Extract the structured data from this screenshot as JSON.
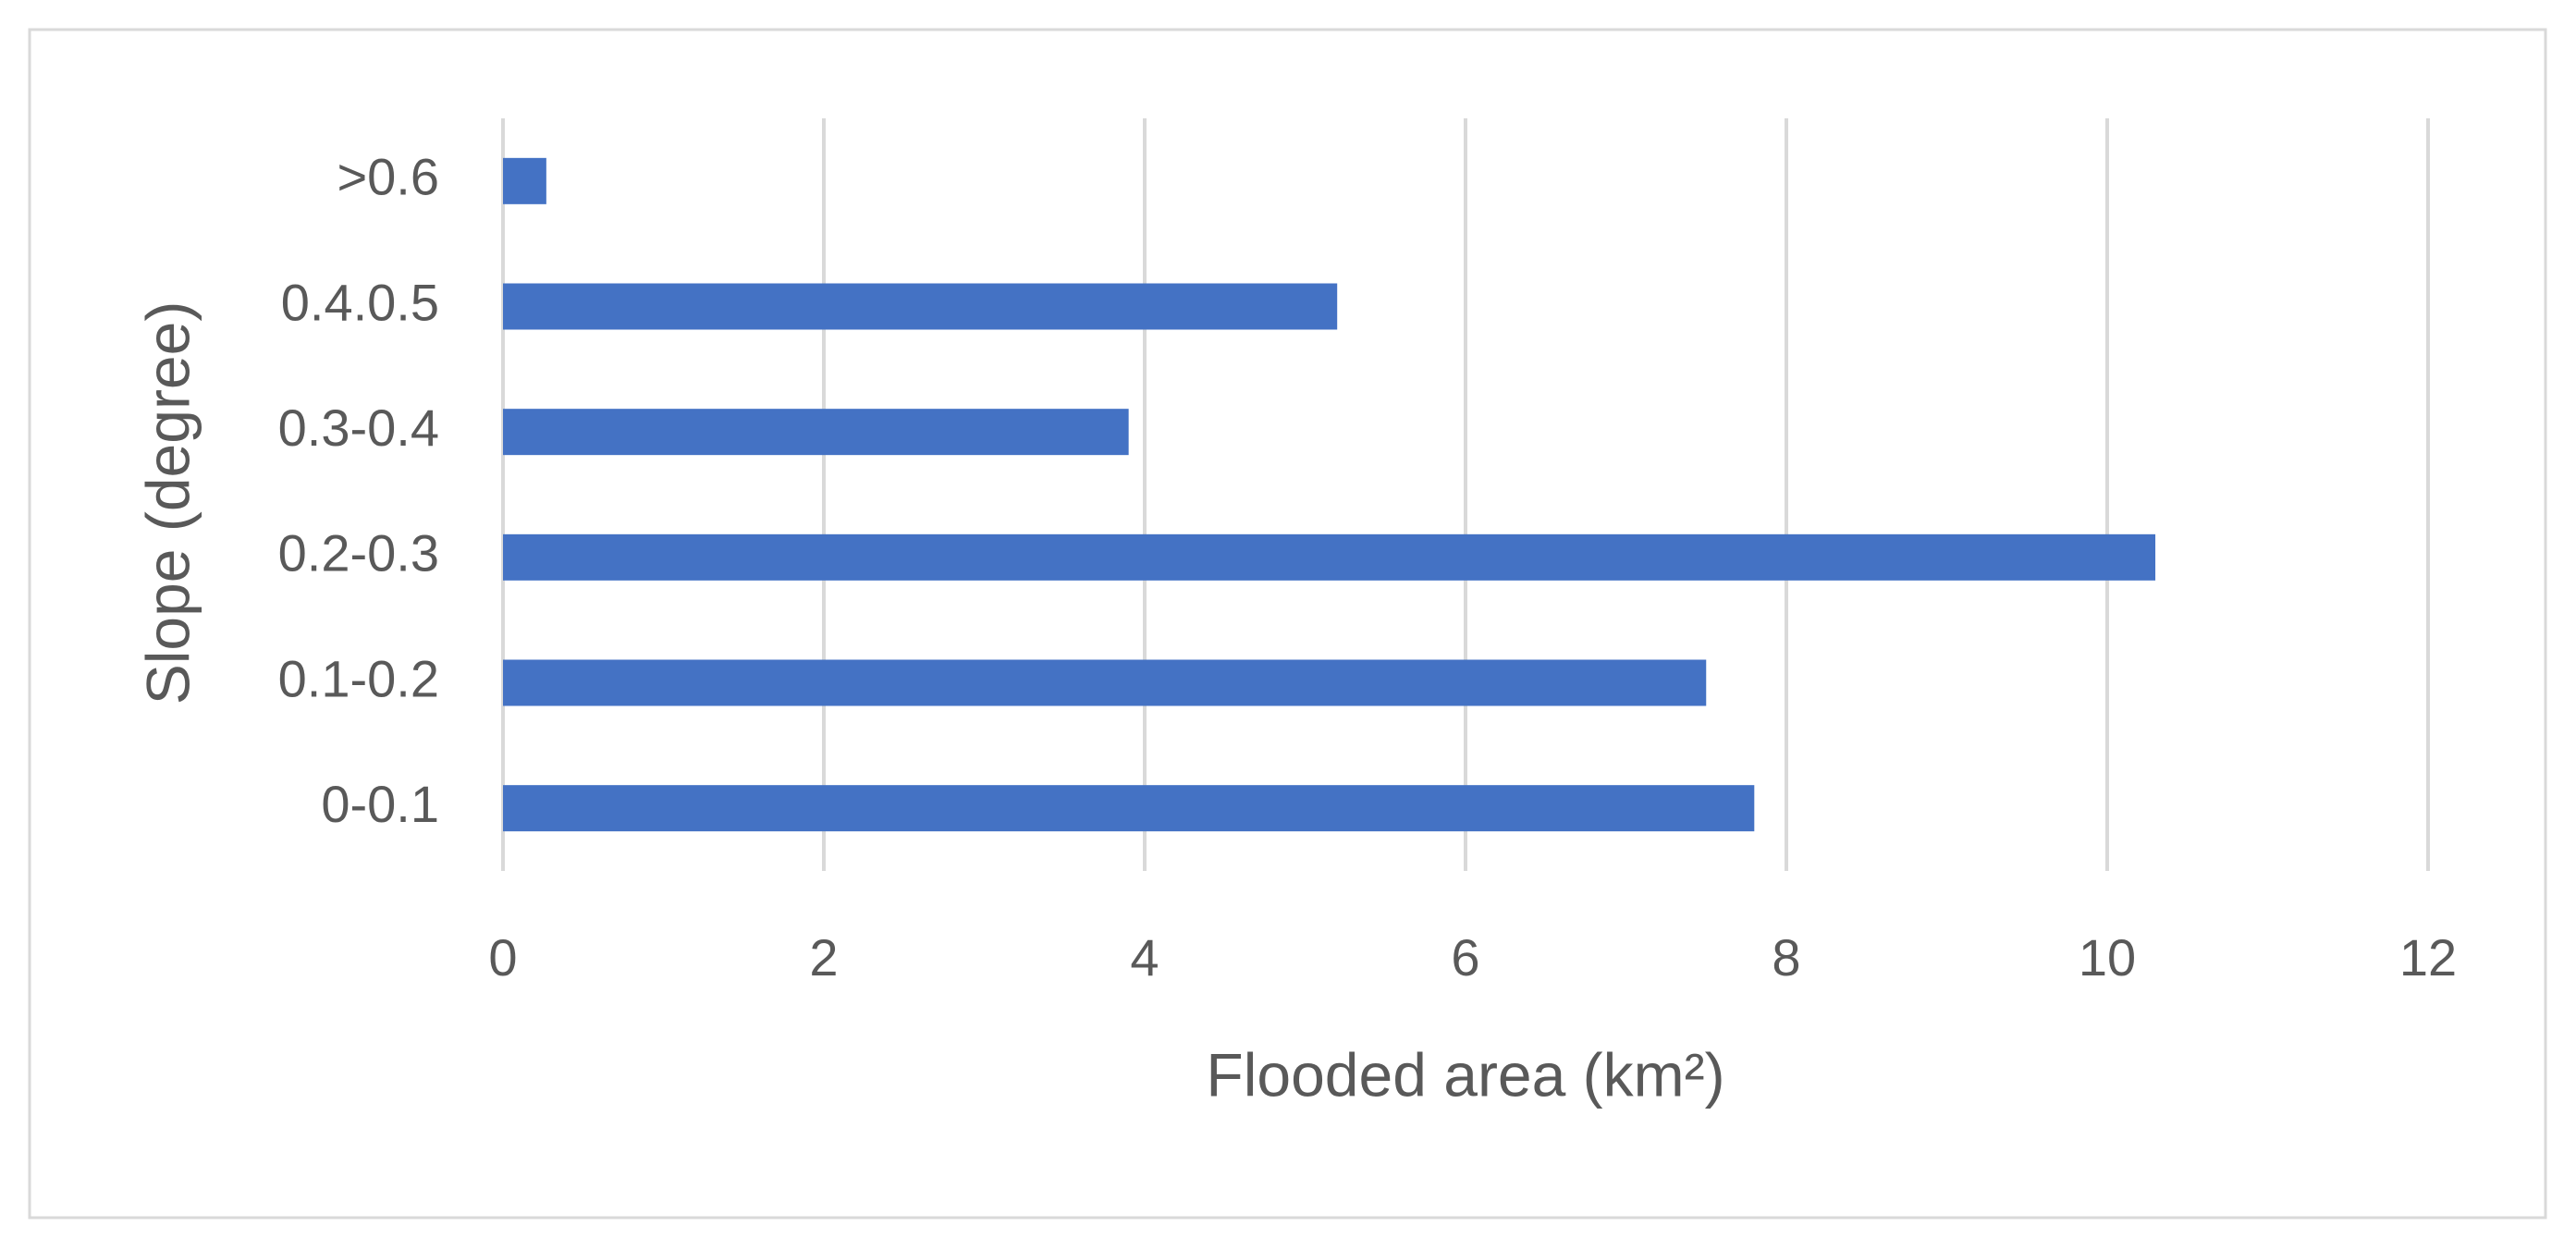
{
  "chart_data": {
    "type": "bar",
    "orientation": "horizontal",
    "x_label": "Flooded area (km²)",
    "y_label": "Slope (degree)",
    "categories": [
      "0-0.1",
      "0.1-0.2",
      "0.2-0.3",
      "0.3-0.4",
      "0.4.0.5",
      ">0.6"
    ],
    "values": [
      7.8,
      7.5,
      10.3,
      3.9,
      5.2,
      0.27
    ],
    "color": "#4472c4",
    "xlim": [
      0,
      12
    ],
    "xticks": [
      0,
      2,
      4,
      6,
      8,
      10,
      12
    ],
    "grid": true
  }
}
